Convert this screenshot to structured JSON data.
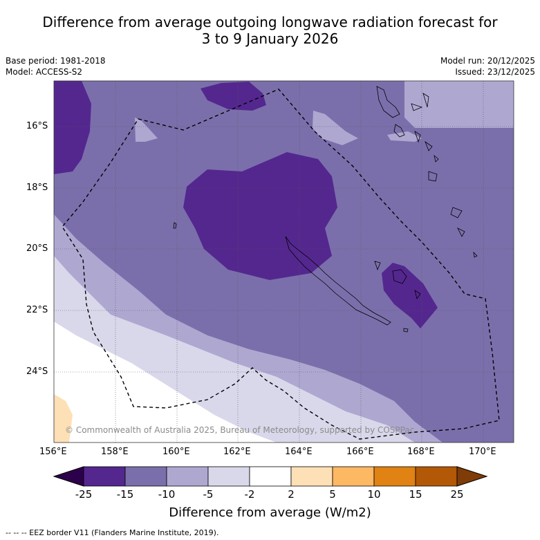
{
  "title_line1": "Difference from average outgoing longwave radiation forecast for",
  "title_line2": "3 to 9 January 2026",
  "base_period": "Base period: 1981-2018",
  "model": "Model: ACCESS-S2",
  "model_run": "Model run: 20/12/2025",
  "issued": "Issued: 23/12/2025",
  "lat_ticks": [
    "16°S",
    "18°S",
    "20°S",
    "22°S",
    "24°S"
  ],
  "lon_ticks": [
    "156°E",
    "158°E",
    "160°E",
    "162°E",
    "164°E",
    "166°E",
    "168°E",
    "170°E"
  ],
  "copyright": "© Commonwealth of Australia 2025, Bureau of Meteorology, supported by COSPPac",
  "colorbar": {
    "labels": [
      "-25",
      "-15",
      "-10",
      "-5",
      "-2",
      "2",
      "5",
      "10",
      "15",
      "25"
    ],
    "colors": [
      "#54278f",
      "#7b6fab",
      "#aea8d1",
      "#d9d8eb",
      "#ffffff",
      "#fee0b6",
      "#fdb863",
      "#e08214",
      "#b35806"
    ],
    "under_color": "#2d004b",
    "over_color": "#7f3b08",
    "title": "Difference from average (W/m2)"
  },
  "legend": "--  --  -- EEZ border V11 (Flanders Marine Institute, 2019).",
  "colors": {
    "band_lt_neg15": "#54278f",
    "band_neg15_neg10": "#7b6fab",
    "band_neg10_neg5": "#aea8d1",
    "band_neg5_neg2": "#d9d8eb",
    "band_neutral": "#ffffff",
    "band_2_5": "#fee0b6"
  }
}
